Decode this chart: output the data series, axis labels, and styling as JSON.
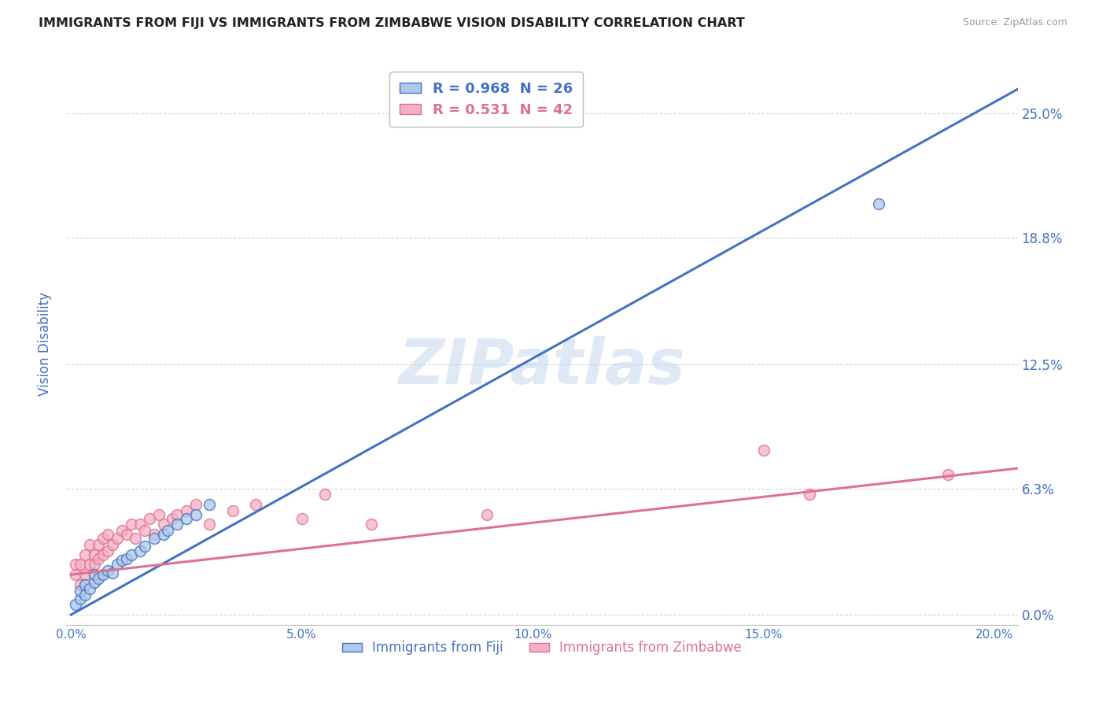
{
  "title": "IMMIGRANTS FROM FIJI VS IMMIGRANTS FROM ZIMBABWE VISION DISABILITY CORRELATION CHART",
  "source": "Source: ZipAtlas.com",
  "ylabel": "Vision Disability",
  "xlabel_ticks": [
    "0.0%",
    "5.0%",
    "10.0%",
    "15.0%",
    "20.0%"
  ],
  "xlabel_vals": [
    0.0,
    0.05,
    0.1,
    0.15,
    0.2
  ],
  "ylabel_ticks": [
    "0.0%",
    "6.3%",
    "12.5%",
    "18.8%",
    "25.0%"
  ],
  "ylabel_vals": [
    0.0,
    0.063,
    0.125,
    0.188,
    0.25
  ],
  "xlim": [
    -0.001,
    0.205
  ],
  "ylim": [
    -0.005,
    0.275
  ],
  "fiji_R": 0.968,
  "fiji_N": 26,
  "zimbabwe_R": 0.531,
  "zimbabwe_N": 42,
  "fiji_dot_fill": "#adc8e8",
  "zimbabwe_dot_fill": "#f4b0c4",
  "fiji_line_color": "#4472c4",
  "zimbabwe_line_color": "#e07090",
  "fiji_scatter_x": [
    0.001,
    0.002,
    0.002,
    0.003,
    0.003,
    0.004,
    0.005,
    0.005,
    0.006,
    0.007,
    0.008,
    0.009,
    0.01,
    0.011,
    0.012,
    0.013,
    0.015,
    0.016,
    0.018,
    0.02,
    0.021,
    0.023,
    0.025,
    0.027,
    0.03,
    0.175
  ],
  "fiji_scatter_y": [
    0.005,
    0.008,
    0.012,
    0.01,
    0.015,
    0.013,
    0.016,
    0.02,
    0.018,
    0.02,
    0.022,
    0.021,
    0.025,
    0.027,
    0.028,
    0.03,
    0.032,
    0.034,
    0.038,
    0.04,
    0.042,
    0.045,
    0.048,
    0.05,
    0.055,
    0.205
  ],
  "zimbabwe_scatter_x": [
    0.001,
    0.001,
    0.002,
    0.002,
    0.003,
    0.003,
    0.004,
    0.004,
    0.005,
    0.005,
    0.006,
    0.006,
    0.007,
    0.007,
    0.008,
    0.008,
    0.009,
    0.01,
    0.011,
    0.012,
    0.013,
    0.014,
    0.015,
    0.016,
    0.017,
    0.018,
    0.019,
    0.02,
    0.022,
    0.023,
    0.025,
    0.027,
    0.03,
    0.035,
    0.04,
    0.05,
    0.055,
    0.065,
    0.09,
    0.15,
    0.16,
    0.19
  ],
  "zimbabwe_scatter_y": [
    0.02,
    0.025,
    0.015,
    0.025,
    0.02,
    0.03,
    0.025,
    0.035,
    0.025,
    0.03,
    0.028,
    0.035,
    0.03,
    0.038,
    0.032,
    0.04,
    0.035,
    0.038,
    0.042,
    0.04,
    0.045,
    0.038,
    0.045,
    0.042,
    0.048,
    0.04,
    0.05,
    0.045,
    0.048,
    0.05,
    0.052,
    0.055,
    0.045,
    0.052,
    0.055,
    0.048,
    0.06,
    0.045,
    0.05,
    0.082,
    0.06,
    0.07
  ],
  "fiji_line_x0": 0.0,
  "fiji_line_y0": 0.0,
  "fiji_line_x1": 0.205,
  "fiji_line_y1": 0.262,
  "zimbabwe_line_x0": 0.0,
  "zimbabwe_line_y0": 0.02,
  "zimbabwe_line_x1": 0.205,
  "zimbabwe_line_y1": 0.073,
  "watermark": "ZIPatlas",
  "background_color": "#ffffff",
  "grid_color": "#cccccc",
  "title_color": "#222222",
  "tick_color": "#4472c4",
  "ylabel_color": "#4472c4"
}
